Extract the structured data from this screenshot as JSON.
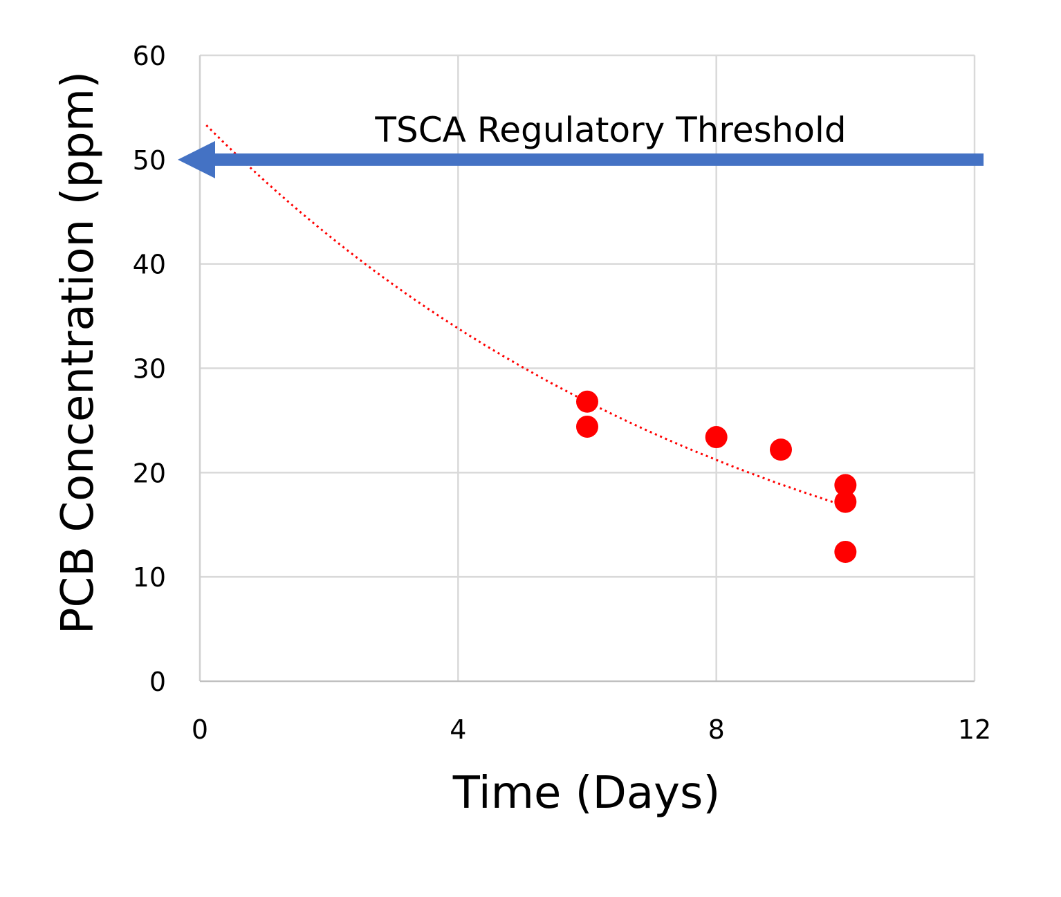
{
  "chart_data": {
    "type": "scatter",
    "xlabel": "Time (Days)",
    "ylabel": "PCB  Concentration (ppm)",
    "xlim": [
      0,
      12
    ],
    "ylim": [
      0,
      60
    ],
    "x_ticks": [
      0,
      4,
      8,
      12
    ],
    "y_ticks": [
      0,
      10,
      20,
      30,
      40,
      50,
      60
    ],
    "x_tick_labels": [
      "0",
      "4",
      "8",
      "12"
    ],
    "y_tick_labels": [
      "0",
      "10",
      "20",
      "30",
      "40",
      "50",
      "60"
    ],
    "grid": true,
    "series": [
      {
        "color": "#ff0000",
        "points": [
          {
            "x": 6,
            "y": 26.8
          },
          {
            "x": 6,
            "y": 24.4
          },
          {
            "x": 8,
            "y": 23.4
          },
          {
            "x": 9,
            "y": 22.2
          },
          {
            "x": 10,
            "y": 18.8
          },
          {
            "x": 10,
            "y": 17.2
          },
          {
            "x": 10,
            "y": 12.4
          }
        ]
      }
    ],
    "trendline": {
      "type": "exponential",
      "style": "dotted",
      "color": "#ff0000",
      "x_range": [
        0.1,
        10
      ],
      "y_start": 53.3,
      "y_end": 16.8
    },
    "annotation": {
      "text": "TSCA Regulatory Threshold",
      "y": 50,
      "arrow_color": "#4472c4",
      "arrow_direction": "left"
    }
  }
}
